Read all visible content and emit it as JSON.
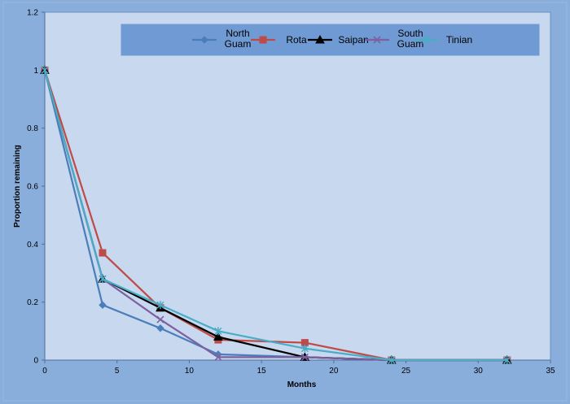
{
  "chart_data": {
    "type": "line",
    "xlabel": "Months",
    "ylabel": "Proportion remaining",
    "xlim": [
      0,
      35
    ],
    "ylim": [
      0,
      1.2
    ],
    "xticks": [
      "0",
      "5",
      "10",
      "15",
      "20",
      "25",
      "30",
      "35"
    ],
    "yticks": [
      "0",
      "0.2",
      "0.4",
      "0.6",
      "0.8",
      "1",
      "1.2"
    ],
    "grid": false,
    "legend_position": "top",
    "series": [
      {
        "name": "North Guam",
        "legend_lines": [
          "North",
          "Guam"
        ],
        "color": "#4a7ebb",
        "marker": "diamond",
        "x": [
          0,
          4,
          8,
          12,
          18,
          24,
          32
        ],
        "y": [
          1.0,
          0.19,
          0.11,
          0.02,
          0.01,
          0.0,
          0.0
        ]
      },
      {
        "name": "Rota",
        "legend_lines": [
          "Rota"
        ],
        "color": "#be4b48",
        "marker": "square",
        "x": [
          0,
          4,
          8,
          12,
          18,
          24,
          32
        ],
        "y": [
          1.0,
          0.37,
          0.18,
          0.07,
          0.06,
          0.0,
          0.0
        ]
      },
      {
        "name": "Saipan",
        "legend_lines": [
          "Saipan"
        ],
        "color": "#000000",
        "marker": "triangle",
        "x": [
          0,
          4,
          8,
          12,
          18,
          24,
          32
        ],
        "y": [
          1.0,
          0.28,
          0.18,
          0.08,
          0.01,
          0.0,
          0.0
        ]
      },
      {
        "name": "South Guam",
        "legend_lines": [
          "South",
          "Guam"
        ],
        "color": "#7d60a0",
        "marker": "x",
        "x": [
          0,
          4,
          8,
          12,
          18,
          24,
          32
        ],
        "y": [
          1.0,
          0.28,
          0.14,
          0.01,
          0.01,
          0.0,
          0.0
        ]
      },
      {
        "name": "Tinian",
        "legend_lines": [
          "Tinian"
        ],
        "color": "#4bacc6",
        "marker": "star",
        "x": [
          0,
          4,
          8,
          12,
          18,
          24,
          32
        ],
        "y": [
          1.0,
          0.28,
          0.19,
          0.1,
          0.04,
          0.0,
          0.0
        ]
      }
    ]
  }
}
